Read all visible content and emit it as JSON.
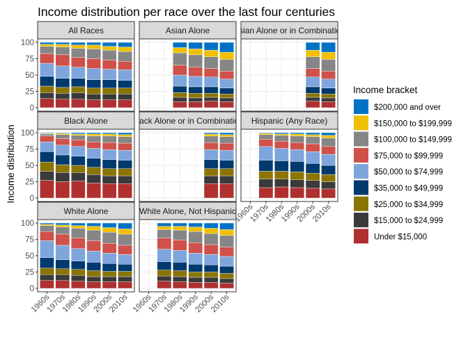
{
  "chart_data": {
    "type": "bar",
    "stacked": true,
    "title": "Income distribution per race over the last four centuries",
    "ylabel": "Income distribution",
    "xlabel": "",
    "ylim": [
      0,
      100
    ],
    "yticks": [
      0,
      25,
      50,
      75,
      100
    ],
    "categories": [
      "1960s",
      "1970s",
      "1980s",
      "1990s",
      "2000s",
      "2010s"
    ],
    "legend": {
      "title": "Income bracket",
      "position": "right",
      "entries": [
        {
          "label": "$200,000 and over",
          "color": "#0072c6"
        },
        {
          "label": "$150,000 to $199,999",
          "color": "#f0c000"
        },
        {
          "label": "$100,000 to $149,999",
          "color": "#868686"
        },
        {
          "label": "$75,000 to $99,999",
          "color": "#d0504a"
        },
        {
          "label": "$50,000 to $74,999",
          "color": "#7ea6dc"
        },
        {
          "label": "$35,000 to $49,999",
          "color": "#003a6e"
        },
        {
          "label": "$25,000 to $34,999",
          "color": "#8b7400"
        },
        {
          "label": "$15,000 to $24,999",
          "color": "#3a3a3a"
        },
        {
          "label": "Under $15,000",
          "color": "#b03030"
        }
      ]
    },
    "bracket_order_bottom_to_top": [
      "Under $15,000",
      "$15,000 to $24,999",
      "$25,000 to $34,999",
      "$35,000 to $49,999",
      "$50,000 to $74,999",
      "$75,000 to $99,999",
      "$100,000 to $149,999",
      "$150,000 to $199,999",
      "$200,000 and over"
    ],
    "panels": [
      {
        "title": "All Races",
        "bars": [
          [
            14,
            9,
            10,
            15,
            20,
            15,
            11,
            3,
            3
          ],
          [
            13,
            9,
            9,
            14,
            19,
            17,
            12,
            4,
            3
          ],
          [
            13,
            10,
            9,
            13,
            17,
            15,
            14,
            5,
            4
          ],
          [
            12,
            9,
            9,
            13,
            17,
            15,
            15,
            6,
            4
          ],
          [
            12,
            9,
            9,
            13,
            16,
            14,
            15,
            6,
            6
          ],
          [
            12,
            9,
            9,
            12,
            16,
            13,
            15,
            7,
            7
          ]
        ]
      },
      {
        "title": "Asian Alone",
        "bars": [
          null,
          null,
          [
            9,
            7,
            7,
            10,
            17,
            15,
            19,
            8,
            8
          ],
          [
            9,
            6,
            7,
            10,
            16,
            14,
            19,
            9,
            10
          ],
          [
            10,
            6,
            6,
            10,
            15,
            13,
            18,
            10,
            12
          ],
          [
            9,
            6,
            6,
            9,
            14,
            12,
            18,
            11,
            15
          ]
        ]
      },
      {
        "title": "Asian Alone or in Combination",
        "bars": [
          null,
          null,
          null,
          null,
          [
            10,
            6,
            6,
            10,
            15,
            13,
            18,
            10,
            12
          ],
          [
            9,
            6,
            6,
            9,
            14,
            12,
            18,
            11,
            15
          ]
        ]
      },
      {
        "title": "Black Alone",
        "bars": [
          [
            27,
            14,
            14,
            16,
            15,
            9,
            3,
            1,
            1
          ],
          [
            25,
            14,
            12,
            15,
            15,
            10,
            6,
            2,
            1
          ],
          [
            26,
            13,
            11,
            14,
            15,
            10,
            7,
            2,
            2
          ],
          [
            23,
            13,
            11,
            14,
            15,
            10,
            9,
            3,
            2
          ],
          [
            22,
            12,
            11,
            14,
            15,
            11,
            10,
            3,
            2
          ],
          [
            22,
            12,
            11,
            13,
            15,
            11,
            10,
            3,
            3
          ]
        ]
      },
      {
        "title": "Black Alone or in Combination",
        "bars": [
          null,
          null,
          null,
          null,
          [
            22,
            12,
            11,
            14,
            15,
            11,
            10,
            3,
            2
          ],
          [
            22,
            12,
            11,
            13,
            15,
            11,
            10,
            3,
            3
          ]
        ]
      },
      {
        "title": "Hispanic (Any Race)",
        "bars": [
          null,
          [
            16,
            13,
            12,
            17,
            21,
            11,
            7,
            2,
            1
          ],
          [
            17,
            12,
            12,
            16,
            19,
            11,
            9,
            2,
            2
          ],
          [
            16,
            12,
            12,
            16,
            18,
            11,
            10,
            3,
            2
          ],
          [
            15,
            12,
            11,
            15,
            18,
            12,
            11,
            3,
            3
          ],
          [
            14,
            11,
            11,
            14,
            17,
            12,
            13,
            4,
            4
          ]
        ]
      },
      {
        "title": "White Alone",
        "bars": [
          [
            12,
            9,
            10,
            16,
            26,
            14,
            9,
            2,
            2
          ],
          [
            12,
            9,
            9,
            14,
            22,
            17,
            11,
            3,
            3
          ],
          [
            11,
            9,
            9,
            13,
            19,
            16,
            15,
            4,
            4
          ],
          [
            10,
            8,
            9,
            13,
            17,
            16,
            16,
            6,
            5
          ],
          [
            10,
            8,
            8,
            12,
            16,
            15,
            17,
            7,
            7
          ],
          [
            10,
            8,
            8,
            11,
            15,
            14,
            17,
            8,
            9
          ]
        ]
      },
      {
        "title": "White Alone, Not Hispanic",
        "bars": [
          null,
          [
            11,
            8,
            9,
            13,
            19,
            17,
            13,
            5,
            5
          ],
          [
            10,
            8,
            9,
            13,
            18,
            16,
            15,
            6,
            5
          ],
          [
            9,
            8,
            8,
            12,
            17,
            16,
            17,
            7,
            6
          ],
          [
            9,
            8,
            8,
            11,
            16,
            15,
            17,
            8,
            8
          ],
          [
            8,
            7,
            8,
            11,
            15,
            14,
            18,
            9,
            10
          ]
        ]
      }
    ]
  }
}
